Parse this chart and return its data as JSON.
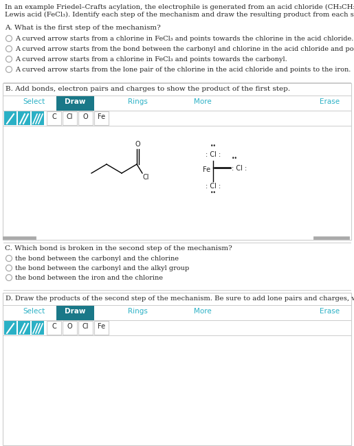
{
  "bg_color": "#ffffff",
  "teal_color": "#2ab0c5",
  "dark_teal": "#1a7888",
  "border_color": "#cccccc",
  "text_color": "#222222",
  "section_A_options": [
    "A curved arrow starts from a chlorine in FeCl₃ and points towards the chlorine in the acid chloride.",
    "A curved arrow starts from the bond between the carbonyl and chlorine in the acid chloride and points to the iron.",
    "A curved arrow starts from a chlorine in FeCl₃ and points towards the carbonyl.",
    "A curved arrow starts from the lone pair of the chlorine in the acid chloride and points to the iron."
  ],
  "atom_buttons_B": [
    "C",
    "Cl",
    "O",
    "Fe"
  ],
  "section_C_options": [
    "the bond between the carbonyl and the chlorine",
    "the bond between the carbonyl and the alkyl group",
    "the bond between the iron and the chlorine"
  ],
  "atom_buttons_D": [
    "C",
    "O",
    "Cl",
    "Fe"
  ]
}
